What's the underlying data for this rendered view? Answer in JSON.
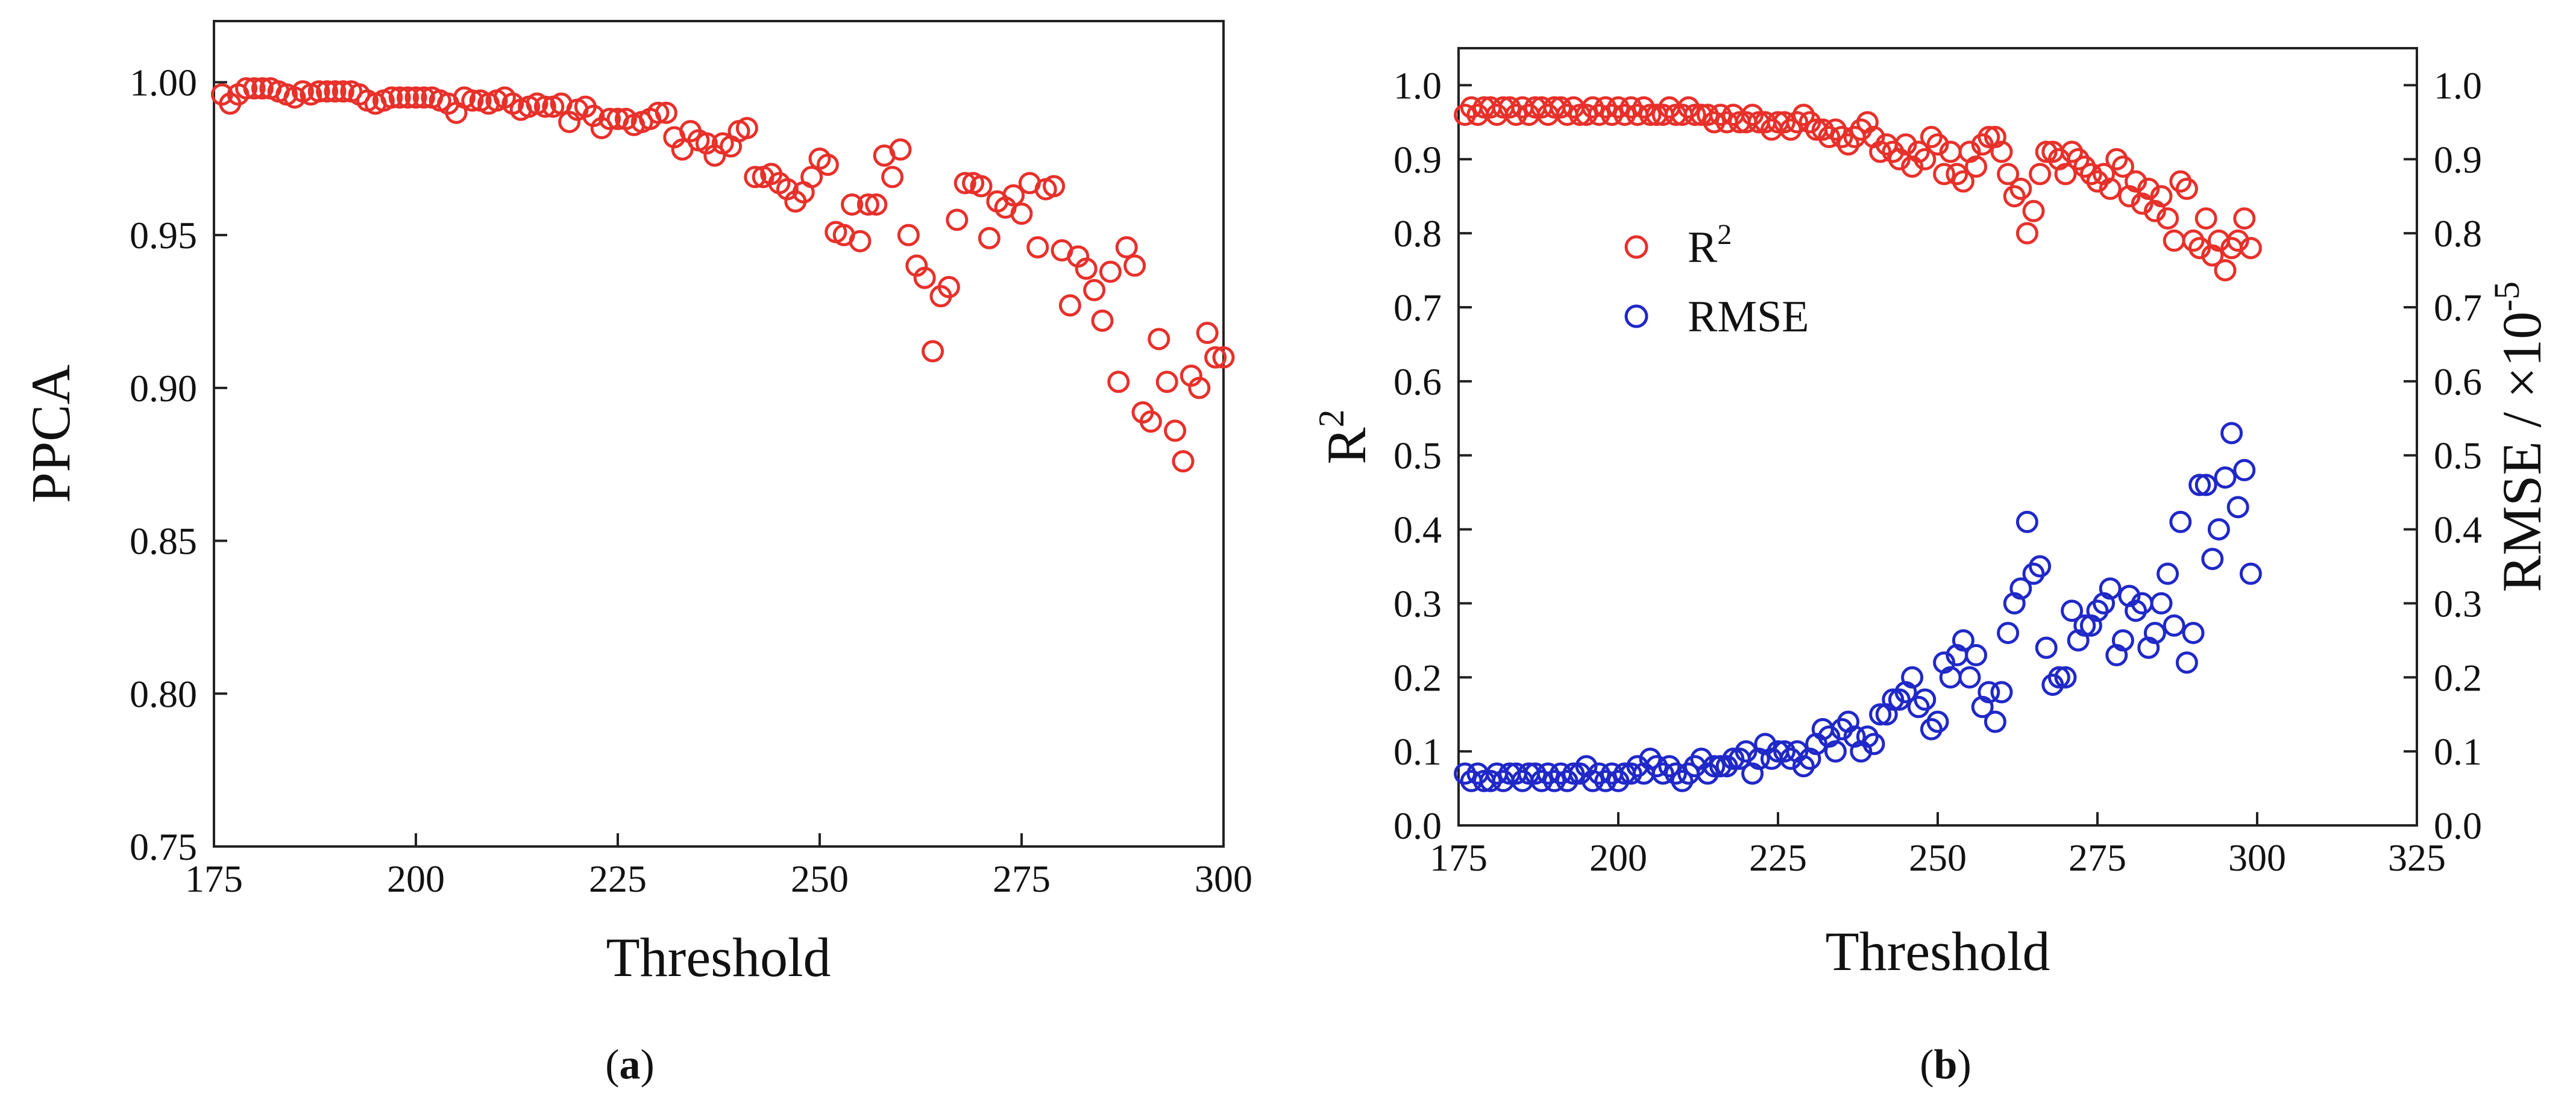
{
  "chart_data": [
    {
      "type": "scatter",
      "panel": "a",
      "caption": {
        "open": "(",
        "letter": "a",
        "close": ")"
      },
      "xlabel": "Threshold",
      "ylabel": "PPCA",
      "xlim": [
        175,
        300
      ],
      "ylim": [
        0.75,
        1.02
      ],
      "xticks": [
        "175",
        "200",
        "225",
        "250",
        "275",
        "300"
      ],
      "yticks": [
        "0.75",
        "0.80",
        "0.85",
        "0.90",
        "0.95",
        "1.00"
      ],
      "legend": "none",
      "series": [
        {
          "name": "PPCA",
          "color": "#e8302a",
          "marker": "open-circle",
          "x": [
            176,
            177,
            178,
            179,
            180,
            181,
            182,
            183,
            184,
            185,
            186,
            187,
            188,
            189,
            190,
            191,
            192,
            193,
            194,
            195,
            196,
            197,
            198,
            199,
            200,
            201,
            202,
            203,
            204,
            205,
            206,
            207,
            208,
            209,
            210,
            211,
            212,
            213,
            214,
            215,
            216,
            217,
            218,
            219,
            220,
            221,
            222,
            223,
            224,
            225,
            226,
            227,
            228,
            229,
            230,
            231,
            232,
            233,
            234,
            235,
            236,
            237,
            238,
            239,
            240,
            241,
            242,
            243,
            244,
            245,
            246,
            247,
            248,
            249,
            250,
            251,
            252,
            253,
            254,
            255,
            256,
            257,
            258,
            259,
            260,
            261,
            262,
            263,
            264,
            265,
            266,
            267,
            268,
            269,
            270,
            271,
            272,
            273,
            274,
            275,
            276,
            277,
            278,
            279,
            280,
            281,
            282,
            283,
            284,
            285,
            286,
            287,
            288,
            289,
            290,
            291,
            292,
            293,
            294,
            295,
            296,
            297,
            298,
            299,
            300
          ],
          "y": [
            0.996,
            0.993,
            0.996,
            0.998,
            0.998,
            0.998,
            0.998,
            0.997,
            0.996,
            0.995,
            0.997,
            0.996,
            0.997,
            0.997,
            0.997,
            0.997,
            0.997,
            0.996,
            0.994,
            0.993,
            0.994,
            0.995,
            0.995,
            0.995,
            0.995,
            0.995,
            0.995,
            0.994,
            0.993,
            0.99,
            0.995,
            0.994,
            0.994,
            0.993,
            0.994,
            0.995,
            0.993,
            0.991,
            0.992,
            0.993,
            0.992,
            0.992,
            0.993,
            0.987,
            0.991,
            0.992,
            0.989,
            0.985,
            0.988,
            0.988,
            0.988,
            0.986,
            0.987,
            0.988,
            0.99,
            0.99,
            0.982,
            0.978,
            0.984,
            0.981,
            0.98,
            0.976,
            0.98,
            0.979,
            0.984,
            0.985,
            0.969,
            0.969,
            0.97,
            0.967,
            0.965,
            0.961,
            0.964,
            0.969,
            0.975,
            0.973,
            0.951,
            0.95,
            0.96,
            0.948,
            0.96,
            0.96,
            0.976,
            0.969,
            0.978,
            0.95,
            0.94,
            0.936,
            0.912,
            0.93,
            0.933,
            0.955,
            0.967,
            0.967,
            0.966,
            0.949,
            0.961,
            0.959,
            0.963,
            0.957,
            0.967,
            0.946,
            0.965,
            0.966,
            0.945,
            0.927,
            0.943,
            0.939,
            0.932,
            0.922,
            0.938,
            0.902,
            0.946,
            0.94,
            0.892,
            0.889,
            0.916,
            0.902,
            0.886,
            0.876,
            0.904,
            0.9,
            0.918,
            0.91,
            0.91
          ]
        }
      ]
    },
    {
      "type": "scatter",
      "panel": "b",
      "caption": {
        "open": "(",
        "letter": "b",
        "close": ")"
      },
      "xlabel": "Threshold",
      "ylabel": "R",
      "ylabel_sup": "2",
      "ylabel_right": "RMSE / ×10",
      "ylabel_right_sup": "-5",
      "xlim": [
        175,
        325
      ],
      "ylim": [
        0.0,
        1.05
      ],
      "xticks": [
        "175",
        "200",
        "225",
        "250",
        "275",
        "300",
        "325"
      ],
      "yticks": [
        "0.0",
        "0.1",
        "0.2",
        "0.3",
        "0.4",
        "0.5",
        "0.6",
        "0.7",
        "0.8",
        "0.9",
        "1.0"
      ],
      "legend": "upper-left-center",
      "series": [
        {
          "name": "R",
          "name_sup": "2",
          "color": "#e8302a",
          "marker": "open-circle",
          "axis": "left",
          "x": [
            176,
            177,
            178,
            179,
            180,
            181,
            182,
            183,
            184,
            185,
            186,
            187,
            188,
            189,
            190,
            191,
            192,
            193,
            194,
            195,
            196,
            197,
            198,
            199,
            200,
            201,
            202,
            203,
            204,
            205,
            206,
            207,
            208,
            209,
            210,
            211,
            212,
            213,
            214,
            215,
            216,
            217,
            218,
            219,
            220,
            221,
            222,
            223,
            224,
            225,
            226,
            227,
            228,
            229,
            230,
            231,
            232,
            233,
            234,
            235,
            236,
            237,
            238,
            239,
            240,
            241,
            242,
            243,
            244,
            245,
            246,
            247,
            248,
            249,
            250,
            251,
            252,
            253,
            254,
            255,
            256,
            257,
            258,
            259,
            260,
            261,
            262,
            263,
            264,
            265,
            266,
            267,
            268,
            269,
            270,
            271,
            272,
            273,
            274,
            275,
            276,
            277,
            278,
            279,
            280,
            281,
            282,
            283,
            284,
            285,
            286,
            287,
            288,
            289,
            290,
            291,
            292,
            293,
            294,
            295,
            296,
            297,
            298,
            299
          ],
          "y": [
            0.96,
            0.97,
            0.96,
            0.97,
            0.97,
            0.96,
            0.97,
            0.97,
            0.96,
            0.97,
            0.96,
            0.97,
            0.97,
            0.96,
            0.97,
            0.97,
            0.96,
            0.97,
            0.96,
            0.96,
            0.97,
            0.96,
            0.97,
            0.96,
            0.97,
            0.96,
            0.97,
            0.96,
            0.97,
            0.96,
            0.96,
            0.96,
            0.97,
            0.96,
            0.96,
            0.97,
            0.96,
            0.96,
            0.96,
            0.95,
            0.96,
            0.95,
            0.96,
            0.95,
            0.95,
            0.96,
            0.95,
            0.95,
            0.94,
            0.95,
            0.95,
            0.94,
            0.95,
            0.96,
            0.95,
            0.94,
            0.94,
            0.93,
            0.94,
            0.93,
            0.92,
            0.93,
            0.94,
            0.95,
            0.93,
            0.91,
            0.92,
            0.91,
            0.9,
            0.92,
            0.89,
            0.91,
            0.9,
            0.93,
            0.92,
            0.88,
            0.91,
            0.88,
            0.87,
            0.91,
            0.89,
            0.92,
            0.93,
            0.93,
            0.91,
            0.88,
            0.85,
            0.86,
            0.8,
            0.83,
            0.88,
            0.91,
            0.91,
            0.9,
            0.88,
            0.91,
            0.9,
            0.89,
            0.88,
            0.87,
            0.88,
            0.86,
            0.9,
            0.89,
            0.85,
            0.87,
            0.84,
            0.86,
            0.83,
            0.85,
            0.82,
            0.79,
            0.87,
            0.86,
            0.79,
            0.78,
            0.82,
            0.77,
            0.79,
            0.75,
            0.78,
            0.79,
            0.82,
            0.78
          ]
        },
        {
          "name": "RMSE",
          "color": "#2028c8",
          "marker": "open-circle",
          "axis": "right",
          "x": [
            176,
            177,
            178,
            179,
            180,
            181,
            182,
            183,
            184,
            185,
            186,
            187,
            188,
            189,
            190,
            191,
            192,
            193,
            194,
            195,
            196,
            197,
            198,
            199,
            200,
            201,
            202,
            203,
            204,
            205,
            206,
            207,
            208,
            209,
            210,
            211,
            212,
            213,
            214,
            215,
            216,
            217,
            218,
            219,
            220,
            221,
            222,
            223,
            224,
            225,
            226,
            227,
            228,
            229,
            230,
            231,
            232,
            233,
            234,
            235,
            236,
            237,
            238,
            239,
            240,
            241,
            242,
            243,
            244,
            245,
            246,
            247,
            248,
            249,
            250,
            251,
            252,
            253,
            254,
            255,
            256,
            257,
            258,
            259,
            260,
            261,
            262,
            263,
            264,
            265,
            266,
            267,
            268,
            269,
            270,
            271,
            272,
            273,
            274,
            275,
            276,
            277,
            278,
            279,
            280,
            281,
            282,
            283,
            284,
            285,
            286,
            287,
            288,
            289,
            290,
            291,
            292,
            293,
            294,
            295,
            296,
            297,
            298,
            299
          ],
          "y": [
            0.07,
            0.06,
            0.07,
            0.06,
            0.06,
            0.07,
            0.06,
            0.07,
            0.07,
            0.06,
            0.07,
            0.07,
            0.06,
            0.07,
            0.06,
            0.07,
            0.06,
            0.07,
            0.07,
            0.08,
            0.06,
            0.07,
            0.06,
            0.07,
            0.06,
            0.07,
            0.07,
            0.08,
            0.07,
            0.09,
            0.08,
            0.07,
            0.08,
            0.07,
            0.06,
            0.07,
            0.08,
            0.09,
            0.07,
            0.08,
            0.08,
            0.08,
            0.09,
            0.09,
            0.1,
            0.07,
            0.09,
            0.11,
            0.09,
            0.1,
            0.1,
            0.09,
            0.1,
            0.08,
            0.09,
            0.11,
            0.13,
            0.12,
            0.1,
            0.13,
            0.14,
            0.12,
            0.1,
            0.12,
            0.11,
            0.15,
            0.15,
            0.17,
            0.17,
            0.18,
            0.2,
            0.16,
            0.17,
            0.13,
            0.14,
            0.22,
            0.2,
            0.23,
            0.25,
            0.2,
            0.23,
            0.16,
            0.18,
            0.14,
            0.18,
            0.26,
            0.3,
            0.32,
            0.41,
            0.34,
            0.35,
            0.24,
            0.19,
            0.2,
            0.2,
            0.29,
            0.25,
            0.27,
            0.27,
            0.29,
            0.3,
            0.32,
            0.23,
            0.25,
            0.31,
            0.29,
            0.3,
            0.24,
            0.26,
            0.3,
            0.34,
            0.27,
            0.41,
            0.22,
            0.26,
            0.46,
            0.46,
            0.36,
            0.4,
            0.47,
            0.53,
            0.43,
            0.48,
            0.34
          ]
        }
      ]
    }
  ]
}
